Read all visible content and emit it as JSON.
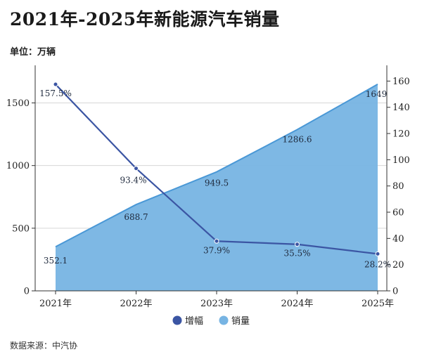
{
  "title": "2021年-2025年新能源汽车销量",
  "unit_label": "单位：万辆",
  "source": "数据来源：中汽协",
  "chart_data": {
    "type": "area",
    "categories": [
      "2021年",
      "2022年",
      "2023年",
      "2024年",
      "2025年"
    ],
    "series": [
      {
        "name": "销量",
        "type": "area",
        "axis": "left",
        "color": "#77b4e3",
        "values": [
          352.1,
          688.7,
          949.5,
          1286.6,
          1649
        ],
        "labels": [
          "352.1",
          "688.7",
          "949.5",
          "1286.6",
          "1649"
        ]
      },
      {
        "name": "增幅",
        "type": "line",
        "axis": "right",
        "color": "#3b55a3",
        "values": [
          157.5,
          93.4,
          37.9,
          35.5,
          28.2
        ],
        "labels": [
          "157.5%",
          "93.4%",
          "37.9%",
          "35.5%",
          "28.2%"
        ]
      }
    ],
    "y_left": {
      "range": [
        0,
        1800
      ],
      "ticks": [
        0,
        500,
        1000,
        1500
      ]
    },
    "y_right": {
      "range": [
        0,
        172
      ],
      "ticks": [
        0,
        20,
        40,
        60,
        80,
        100,
        120,
        140,
        160
      ]
    },
    "grid": true,
    "legend": {
      "position": "bottom",
      "items": [
        "增幅",
        "销量"
      ]
    }
  }
}
